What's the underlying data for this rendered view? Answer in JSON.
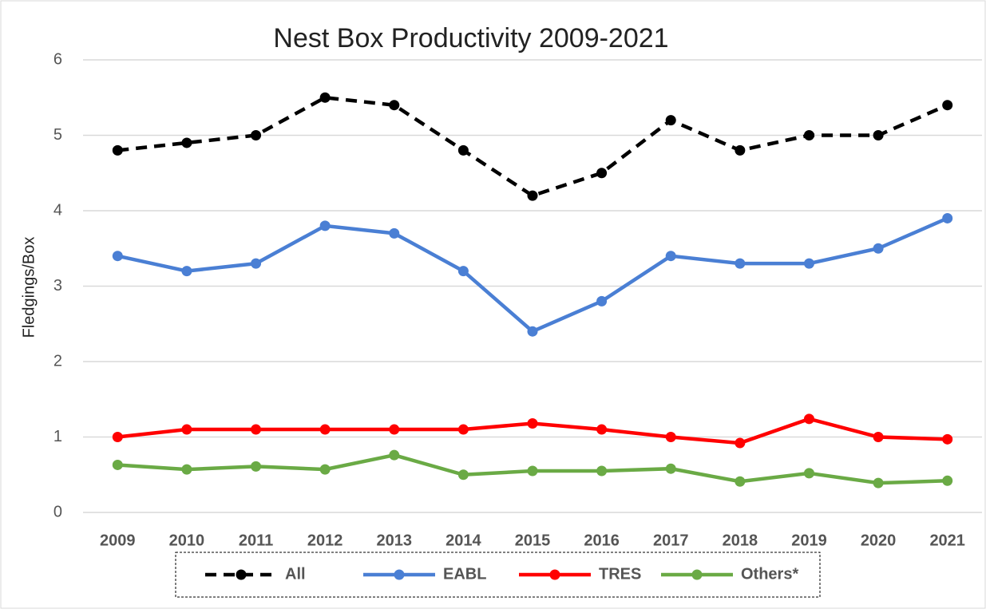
{
  "chart_data": {
    "type": "line",
    "title": "Nest Box Productivity 2009-2021",
    "y_label": "Fledgings/Box",
    "categories": [
      "2009",
      "2010",
      "2011",
      "2012",
      "2013",
      "2014",
      "2015",
      "2016",
      "2017",
      "2018",
      "2019",
      "2020",
      "2021"
    ],
    "series": [
      {
        "name": "All",
        "color": "#000000",
        "line_style": "dashed",
        "values": [
          4.8,
          4.9,
          5.0,
          5.5,
          5.4,
          4.8,
          4.2,
          4.5,
          5.2,
          4.8,
          5.0,
          5.0,
          5.4
        ]
      },
      {
        "name": "EABL",
        "color": "#4a7fd4",
        "line_style": "solid",
        "values": [
          3.4,
          3.2,
          3.3,
          3.8,
          3.7,
          3.2,
          2.4,
          2.8,
          3.4,
          3.3,
          3.3,
          3.5,
          3.9
        ]
      },
      {
        "name": "TRES",
        "color": "#ff0000",
        "line_style": "solid",
        "values": [
          1.0,
          1.1,
          1.1,
          1.1,
          1.1,
          1.1,
          1.18,
          1.1,
          1.0,
          0.92,
          1.24,
          1.0,
          0.97
        ]
      },
      {
        "name": "Others*",
        "color": "#6aaa45",
        "line_style": "solid",
        "values": [
          0.63,
          0.57,
          0.61,
          0.57,
          0.76,
          0.5,
          0.55,
          0.55,
          0.58,
          0.41,
          0.52,
          0.39,
          0.42
        ]
      }
    ],
    "ylim": [
      0,
      6
    ],
    "yticks": [
      0,
      1,
      2,
      3,
      4,
      5,
      6
    ],
    "grid": true,
    "legend": "bottom"
  }
}
